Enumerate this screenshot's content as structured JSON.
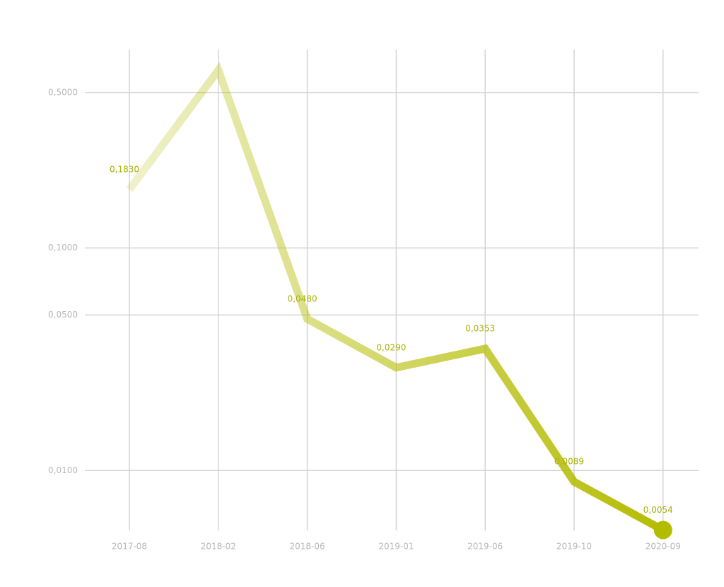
{
  "chart_data": {
    "type": "line",
    "categories": [
      "2017-08",
      "2018-02",
      "2018-06",
      "2019-01",
      "2019-06",
      "2019-10",
      "2020-09"
    ],
    "values": [
      0.183,
      0.63,
      0.048,
      0.029,
      0.0353,
      0.0089,
      0.0054
    ],
    "value_labels": [
      "0,1830",
      null,
      "0,0480",
      "0,0290",
      "0,0353",
      "0,0089",
      "0,0054"
    ],
    "color": "#b4bc00",
    "log_scale": true,
    "ylim": [
      0.005,
      0.78
    ],
    "yticks": [
      {
        "value": 0.5,
        "label": "0,5000"
      },
      {
        "value": 0.1,
        "label": "0,1000"
      },
      {
        "value": 0.05,
        "label": "0,0500"
      },
      {
        "value": 0.01,
        "label": "0,0100"
      }
    ],
    "grid": true
  }
}
